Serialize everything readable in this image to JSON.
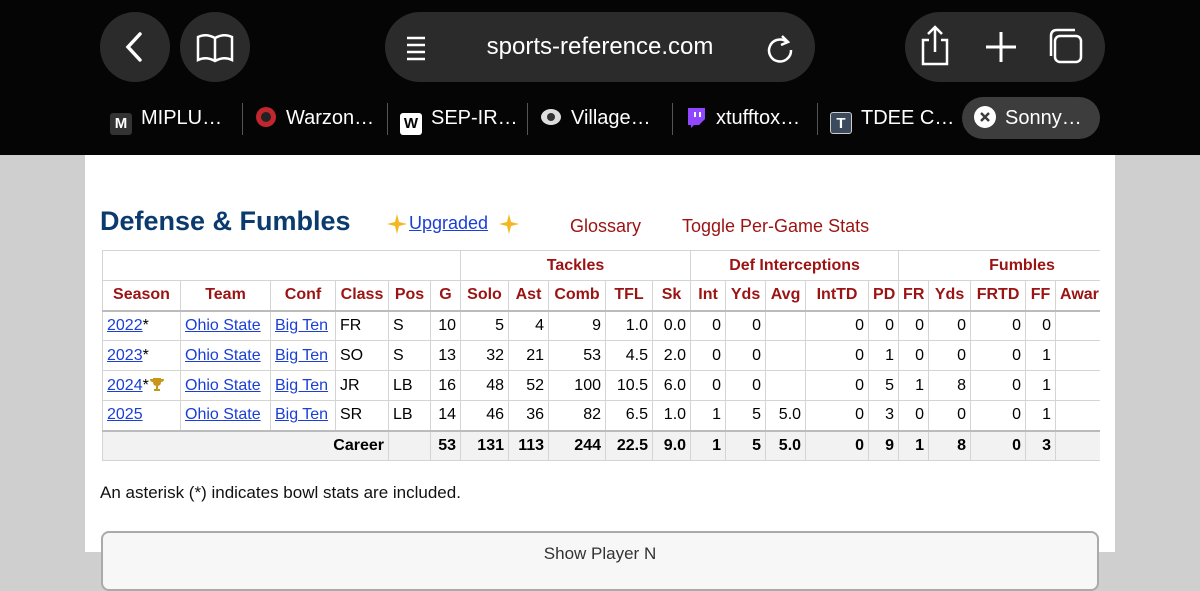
{
  "browser": {
    "url": "sports-reference.com",
    "tabs": [
      {
        "icon": "M",
        "label": "MIPLU…"
      },
      {
        "label": "Warzon…"
      },
      {
        "icon": "W",
        "label": "SEP-IR…"
      },
      {
        "label": "Village…"
      },
      {
        "label": "xtufftox…"
      },
      {
        "icon": "T",
        "label": "TDEE C…"
      },
      {
        "label": "Sonny…"
      }
    ]
  },
  "page": {
    "title": "Defense & Fumbles",
    "upgraded": "Upgraded",
    "links": [
      "Glossary",
      "Toggle Per-Game Stats"
    ],
    "table": {
      "groups": [
        "Tackles",
        "Def Interceptions",
        "Fumbles"
      ],
      "headers": [
        "Season",
        "Team",
        "Conf",
        "Class",
        "Pos",
        "G",
        "Solo",
        "Ast",
        "Comb",
        "TFL",
        "Sk",
        "Int",
        "Yds",
        "Avg",
        "IntTD",
        "PD",
        "FR",
        "Yds",
        "FRTD",
        "FF",
        "Awar"
      ],
      "rows": [
        {
          "season": "2022",
          "note": "*",
          "cells": [
            "Ohio State",
            "Big Ten",
            "FR",
            "S",
            "10",
            "5",
            "4",
            "9",
            "1.0",
            "0.0",
            "0",
            "0",
            null,
            "0",
            "0",
            "0",
            "0",
            "0",
            "0"
          ]
        },
        {
          "season": "2023",
          "note": "*",
          "cells": [
            "Ohio State",
            "Big Ten",
            "SO",
            "S",
            "13",
            "32",
            "21",
            "53",
            "4.5",
            "2.0",
            "0",
            "0",
            null,
            "0",
            "1",
            "0",
            "0",
            "0",
            "1"
          ]
        },
        {
          "season": "2024",
          "note": "*",
          "cells": [
            "Ohio State",
            "Big Ten",
            "JR",
            "LB",
            "16",
            "48",
            "52",
            "100",
            "10.5",
            "6.0",
            "0",
            "0",
            null,
            "0",
            "5",
            "1",
            "8",
            "0",
            "1"
          ]
        },
        {
          "season": "2025",
          "cells": [
            "Ohio State",
            "Big Ten",
            "SR",
            "LB",
            "14",
            "46",
            "36",
            "82",
            "6.5",
            "1.0",
            "1",
            "5",
            "5.0",
            "0",
            "3",
            "0",
            "0",
            "0",
            "1"
          ]
        }
      ],
      "career": {
        "label": "Career",
        "cells": [
          "53",
          "131",
          "113",
          "244",
          "22.5",
          "9.0",
          "1",
          "5",
          "5.0",
          "0",
          "9",
          "1",
          "8",
          "0",
          "3"
        ]
      }
    },
    "note": "An asterisk (*) indicates bowl stats are included.",
    "button": "Show Player N"
  }
}
